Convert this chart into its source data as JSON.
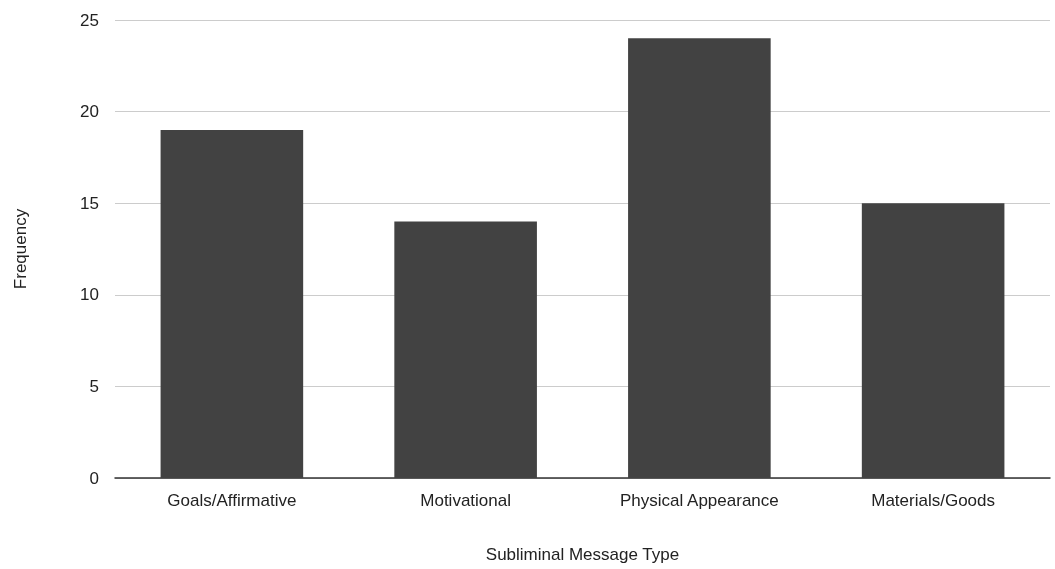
{
  "chart_data": {
    "type": "bar",
    "xlabel": "Subliminal Message Type",
    "ylabel": "Frequency",
    "categories": [
      "Goals/Affirmative",
      "Motivational",
      "Physical Appearance",
      "Materials/Goods"
    ],
    "values": [
      19,
      14,
      24,
      15
    ],
    "color": "#424242",
    "ylim": [
      0,
      25
    ],
    "yticks": [
      0,
      5,
      10,
      15,
      20,
      25
    ],
    "grid": "y"
  }
}
